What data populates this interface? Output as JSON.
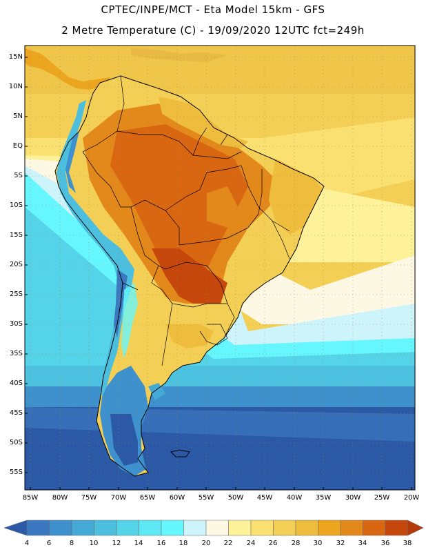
{
  "header": {
    "line1": "CPTEC/INPE/MCT -  Eta Model 15km - GFS",
    "line2": "2 Metre Temperature (C) - 19/09/2020 12UTC fct=249h"
  },
  "map": {
    "lat_labels": [
      "15N",
      "10N",
      "5N",
      "EQ",
      "5S",
      "10S",
      "15S",
      "20S",
      "25S",
      "30S",
      "35S",
      "40S",
      "45S",
      "50S",
      "55S"
    ],
    "lon_labels": [
      "85W",
      "80W",
      "75W",
      "70W",
      "65W",
      "60W",
      "55W",
      "50W",
      "45W",
      "40W",
      "35W",
      "30W",
      "25W",
      "20W"
    ]
  },
  "colorbar": {
    "levels": [
      "4",
      "6",
      "8",
      "10",
      "12",
      "14",
      "16",
      "18",
      "20",
      "22",
      "24",
      "26",
      "28",
      "30",
      "32",
      "34",
      "36",
      "38"
    ],
    "colors": [
      "#2c59a6",
      "#3a78c0",
      "#3e91cc",
      "#45a9d6",
      "#4cbfdf",
      "#55d3e8",
      "#5ee7f4",
      "#66f6fd",
      "#cdf4fa",
      "#fdf8e4",
      "#fdf19a",
      "#f9e070",
      "#f3cf56",
      "#efbd3d",
      "#eca51e",
      "#e3881a",
      "#d96712",
      "#c6470c",
      "#b43a0a"
    ],
    "end_left_color": "#2c59a6",
    "end_right_color": "#b43a0a"
  }
}
